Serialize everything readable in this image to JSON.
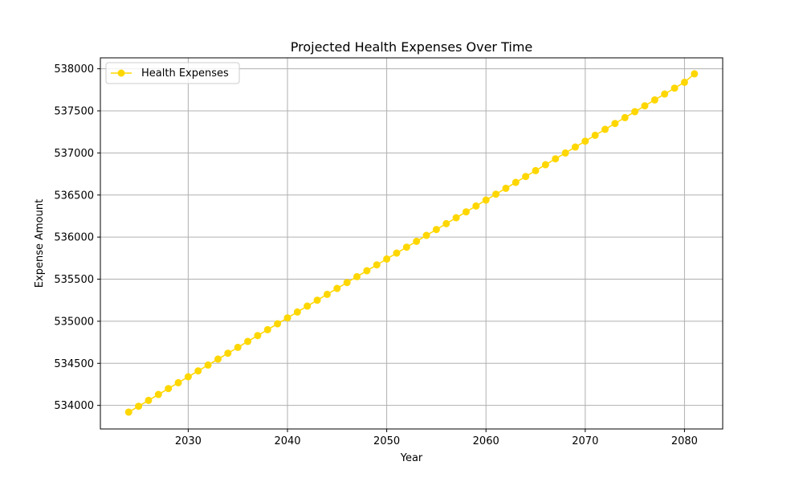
{
  "chart_data": {
    "type": "line",
    "title": "Projected Health Expenses Over Time",
    "xlabel": "Year",
    "ylabel": "Expense Amount",
    "xlim": [
      2021.15,
      2083.85
    ],
    "ylim": [
      533720,
      538130
    ],
    "x_ticks": [
      2030,
      2040,
      2050,
      2060,
      2070,
      2080
    ],
    "y_ticks": [
      534000,
      534500,
      535000,
      535500,
      536000,
      536500,
      537000,
      537500,
      538000
    ],
    "grid": true,
    "legend_position": "top-left",
    "colors": {
      "series": "#FFD700",
      "grid": "#b0b0b0",
      "axis": "#000000"
    },
    "series": [
      {
        "name": "Health Expenses",
        "x": [
          2024,
          2025,
          2026,
          2027,
          2028,
          2029,
          2030,
          2031,
          2032,
          2033,
          2034,
          2035,
          2036,
          2037,
          2038,
          2039,
          2040,
          2041,
          2042,
          2043,
          2044,
          2045,
          2046,
          2047,
          2048,
          2049,
          2050,
          2051,
          2052,
          2053,
          2054,
          2055,
          2056,
          2057,
          2058,
          2059,
          2060,
          2061,
          2062,
          2063,
          2064,
          2065,
          2066,
          2067,
          2068,
          2069,
          2070,
          2071,
          2072,
          2073,
          2074,
          2075,
          2076,
          2077,
          2078,
          2079,
          2080,
          2081
        ],
        "values": [
          533920,
          533990,
          534060,
          534130,
          534200,
          534270,
          534340,
          534410,
          534480,
          534550,
          534620,
          534690,
          534760,
          534830,
          534900,
          534970,
          535040,
          535110,
          535180,
          535250,
          535320,
          535390,
          535460,
          535530,
          535600,
          535670,
          535740,
          535810,
          535880,
          535950,
          536020,
          536090,
          536160,
          536230,
          536300,
          536370,
          536440,
          536510,
          536580,
          536650,
          536720,
          536790,
          536860,
          536930,
          537000,
          537070,
          537140,
          537210,
          537280,
          537350,
          537420,
          537490,
          537560,
          537630,
          537700,
          537770,
          537840,
          537940
        ]
      }
    ]
  }
}
